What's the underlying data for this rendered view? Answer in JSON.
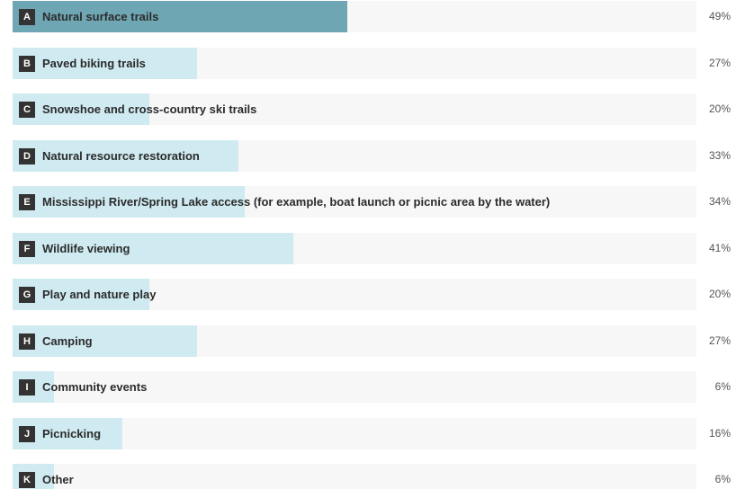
{
  "chart_data": {
    "type": "bar",
    "orientation": "horizontal",
    "categories": [
      {
        "letter": "A",
        "label": "Natural surface trails",
        "value": 49,
        "display": "49%"
      },
      {
        "letter": "B",
        "label": "Paved biking trails",
        "value": 27,
        "display": "27%"
      },
      {
        "letter": "C",
        "label": "Snowshoe and cross-country ski trails",
        "value": 20,
        "display": "20%"
      },
      {
        "letter": "D",
        "label": "Natural resource restoration",
        "value": 33,
        "display": "33%"
      },
      {
        "letter": "E",
        "label": "Mississippi River/Spring Lake access (for example, boat launch or picnic area by the water)",
        "value": 34,
        "display": "34%"
      },
      {
        "letter": "F",
        "label": "Wildlife viewing",
        "value": 41,
        "display": "41%"
      },
      {
        "letter": "G",
        "label": "Play and nature play",
        "value": 20,
        "display": "20%"
      },
      {
        "letter": "H",
        "label": "Camping",
        "value": 27,
        "display": "27%"
      },
      {
        "letter": "I",
        "label": "Community events",
        "value": 6,
        "display": "6%"
      },
      {
        "letter": "J",
        "label": "Picnicking",
        "value": 16,
        "display": "16%"
      },
      {
        "letter": "K",
        "label": "Other",
        "value": 6,
        "display": "6%"
      }
    ],
    "value_unit": "%",
    "highlighted_category": "A",
    "colors": {
      "highlight": "#6fa6b3",
      "bar": "#cfeaf0",
      "track": "#f7f7f7"
    }
  }
}
